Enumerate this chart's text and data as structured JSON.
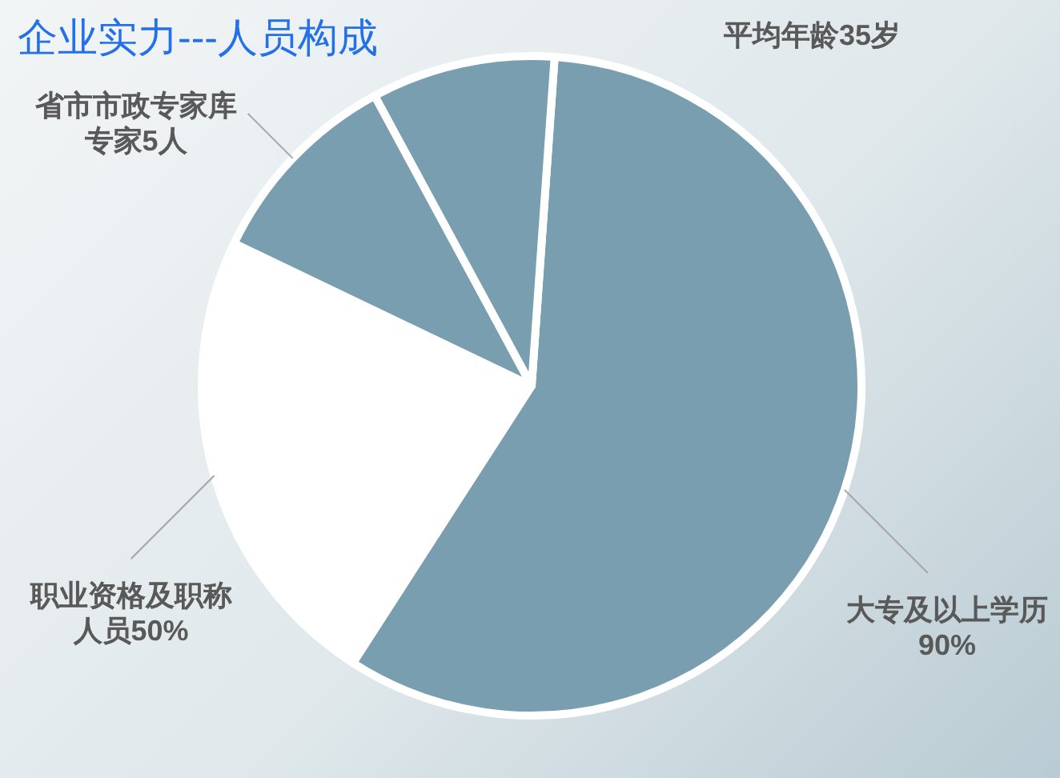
{
  "chart_data": {
    "type": "pie",
    "title": "企业实力---人员构成",
    "categories": [
      "大专及以上学历90%",
      "职业资格及职称人员50%",
      "省市市政专家库专家5人",
      null
    ],
    "values": [
      58,
      23,
      10,
      9
    ],
    "colors": [
      "#799eb0",
      "#ffffff",
      "#799eb0",
      "#799eb0"
    ],
    "annotations": [
      "平均年龄35岁"
    ]
  }
}
